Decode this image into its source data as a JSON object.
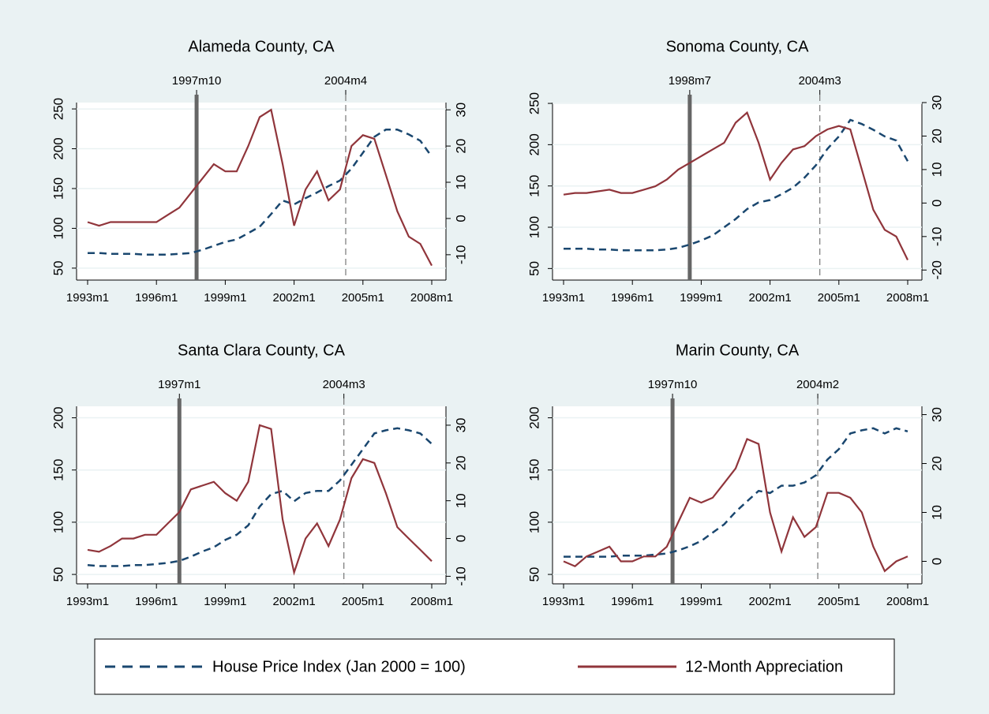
{
  "chart_data": [
    {
      "type": "line",
      "title": "Alameda County, CA",
      "x": [
        1993,
        1993.5,
        1994,
        1994.5,
        1995,
        1995.5,
        1996,
        1996.5,
        1997,
        1997.5,
        1998,
        1998.5,
        1999,
        1999.5,
        2000,
        2000.5,
        2001,
        2001.5,
        2002,
        2002.5,
        2003,
        2003.5,
        2004,
        2004.5,
        2005,
        2005.5,
        2006,
        2006.5,
        2007,
        2007.5,
        2008
      ],
      "xlim": [
        1993,
        2008
      ],
      "xticks": [
        {
          "value": 1993,
          "label": "1993m1"
        },
        {
          "value": 1996,
          "label": "1996m1"
        },
        {
          "value": 1999,
          "label": "1999m1"
        },
        {
          "value": 2002,
          "label": "2002m1"
        },
        {
          "value": 2005,
          "label": "2005m1"
        },
        {
          "value": 2008,
          "label": "2008m1"
        }
      ],
      "ylim": [
        35,
        258
      ],
      "yticks": [
        50,
        100,
        150,
        200,
        250
      ],
      "y2lim": [
        -17,
        32
      ],
      "y2ticks": [
        -10,
        0,
        10,
        20,
        30
      ],
      "vlines": [
        {
          "value": 1997.75,
          "label": "1997m10",
          "style": "solid"
        },
        {
          "value": 2004.25,
          "label": "2004m4",
          "style": "dashed"
        }
      ],
      "series": [
        {
          "axis": "y",
          "values": [
            69,
            69,
            68,
            68,
            68,
            67,
            67,
            67,
            68,
            69,
            73,
            78,
            83,
            86,
            94,
            102,
            118,
            135,
            130,
            138,
            145,
            153,
            160,
            175,
            195,
            215,
            224,
            224,
            218,
            210,
            190
          ]
        },
        {
          "axis": "y2",
          "values": [
            -1,
            -2,
            -1,
            -1,
            -1,
            -1,
            -1,
            1,
            3,
            7,
            11,
            15,
            13,
            13,
            20,
            28,
            30,
            15,
            -2,
            8,
            13,
            5,
            8,
            20,
            23,
            22,
            12,
            2,
            -5,
            -7,
            -13
          ]
        }
      ]
    },
    {
      "type": "line",
      "title": "Sonoma County, CA",
      "x": [
        1993,
        1993.5,
        1994,
        1994.5,
        1995,
        1995.5,
        1996,
        1996.5,
        1997,
        1997.5,
        1998,
        1998.5,
        1999,
        1999.5,
        2000,
        2000.5,
        2001,
        2001.5,
        2002,
        2002.5,
        2003,
        2003.5,
        2004,
        2004.5,
        2005,
        2005.5,
        2006,
        2006.5,
        2007,
        2007.5,
        2008
      ],
      "xlim": [
        1993,
        2008
      ],
      "xticks": [
        {
          "value": 1993,
          "label": "1993m1"
        },
        {
          "value": 1996,
          "label": "1996m1"
        },
        {
          "value": 1999,
          "label": "1999m1"
        },
        {
          "value": 2002,
          "label": "2002m1"
        },
        {
          "value": 2005,
          "label": "2005m1"
        },
        {
          "value": 2008,
          "label": "2008m1"
        }
      ],
      "ylim": [
        36,
        251
      ],
      "yticks": [
        50,
        100,
        150,
        200,
        250
      ],
      "y2lim": [
        -23,
        30
      ],
      "y2ticks": [
        -20,
        -10,
        0,
        10,
        20,
        30
      ],
      "vlines": [
        {
          "value": 1998.5,
          "label": "1998m7",
          "style": "solid"
        },
        {
          "value": 2004.17,
          "label": "2004m3",
          "style": "dashed"
        }
      ],
      "series": [
        {
          "axis": "y",
          "values": [
            74,
            74,
            74,
            73,
            73,
            72,
            72,
            72,
            72,
            73,
            75,
            79,
            84,
            90,
            100,
            110,
            122,
            130,
            133,
            140,
            148,
            160,
            175,
            195,
            210,
            230,
            225,
            218,
            210,
            205,
            180
          ]
        },
        {
          "axis": "y2",
          "values": [
            2.5,
            3,
            3,
            3.5,
            4,
            3,
            3,
            4,
            5,
            7,
            10,
            12,
            14,
            16,
            18,
            24,
            27,
            18,
            7,
            12,
            16,
            17,
            20,
            22,
            23,
            22,
            10,
            -2,
            -8,
            -10,
            -17
          ]
        }
      ]
    },
    {
      "type": "line",
      "title": "Santa Clara County, CA",
      "x": [
        1993,
        1993.5,
        1994,
        1994.5,
        1995,
        1995.5,
        1996,
        1996.5,
        1997,
        1997.5,
        1998,
        1998.5,
        1999,
        1999.5,
        2000,
        2000.5,
        2001,
        2001.5,
        2002,
        2002.5,
        2003,
        2003.5,
        2004,
        2004.5,
        2005,
        2005.5,
        2006,
        2006.5,
        2007,
        2007.5,
        2008
      ],
      "xlim": [
        1993,
        2008
      ],
      "xticks": [
        {
          "value": 1993,
          "label": "1993m1"
        },
        {
          "value": 1996,
          "label": "1996m1"
        },
        {
          "value": 1999,
          "label": "1999m1"
        },
        {
          "value": 2002,
          "label": "2002m1"
        },
        {
          "value": 2005,
          "label": "2005m1"
        },
        {
          "value": 2008,
          "label": "2008m1"
        }
      ],
      "ylim": [
        41,
        211
      ],
      "yticks": [
        50,
        100,
        150,
        200
      ],
      "y2lim": [
        -12,
        35
      ],
      "y2ticks": [
        -10,
        0,
        10,
        20,
        30
      ],
      "vlines": [
        {
          "value": 1997,
          "label": "1997m1",
          "style": "solid"
        },
        {
          "value": 2004.17,
          "label": "2004m3",
          "style": "dashed"
        }
      ],
      "series": [
        {
          "axis": "y",
          "values": [
            59,
            58,
            58,
            58,
            59,
            59,
            60,
            61,
            63,
            67,
            72,
            76,
            83,
            88,
            97,
            115,
            127,
            130,
            120,
            128,
            130,
            130,
            140,
            155,
            170,
            185,
            188,
            190,
            188,
            185,
            175
          ]
        },
        {
          "axis": "y2",
          "values": [
            -3,
            -3.5,
            -2,
            0,
            0,
            1,
            1,
            4,
            7,
            13,
            14,
            15,
            12,
            10,
            15,
            30,
            29,
            5,
            -9,
            0,
            4,
            -2,
            5,
            16,
            21,
            20,
            12,
            3,
            0,
            -3,
            -6
          ]
        }
      ]
    },
    {
      "type": "line",
      "title": "Marin County, CA",
      "x": [
        1993,
        1993.5,
        1994,
        1994.5,
        1995,
        1995.5,
        1996,
        1996.5,
        1997,
        1997.5,
        1998,
        1998.5,
        1999,
        1999.5,
        2000,
        2000.5,
        2001,
        2001.5,
        2002,
        2002.5,
        2003,
        2003.5,
        2004,
        2004.5,
        2005,
        2005.5,
        2006,
        2006.5,
        2007,
        2007.5,
        2008
      ],
      "xlim": [
        1993,
        2008
      ],
      "xticks": [
        {
          "value": 1993,
          "label": "1993m1"
        },
        {
          "value": 1996,
          "label": "1996m1"
        },
        {
          "value": 1999,
          "label": "1999m1"
        },
        {
          "value": 2002,
          "label": "2002m1"
        },
        {
          "value": 2005,
          "label": "2005m1"
        },
        {
          "value": 2008,
          "label": "2008m1"
        }
      ],
      "ylim": [
        41,
        211
      ],
      "yticks": [
        50,
        100,
        150,
        200
      ],
      "y2lim": [
        -4.6,
        31.7
      ],
      "y2ticks": [
        0,
        10,
        20,
        30
      ],
      "vlines": [
        {
          "value": 1997.75,
          "label": "1997m10",
          "style": "solid"
        },
        {
          "value": 2004.08,
          "label": "2004m2",
          "style": "dashed"
        }
      ],
      "series": [
        {
          "axis": "y",
          "values": [
            67,
            67,
            67,
            67,
            67,
            68,
            68,
            68,
            69,
            70,
            73,
            77,
            82,
            90,
            98,
            110,
            120,
            130,
            128,
            135,
            135,
            138,
            145,
            160,
            170,
            185,
            188,
            190,
            185,
            190,
            187
          ]
        },
        {
          "axis": "y2",
          "values": [
            0,
            -1,
            1,
            2,
            3,
            0,
            0,
            1,
            1,
            3,
            8,
            13,
            12,
            13,
            16,
            19,
            25,
            24,
            10,
            2,
            9,
            5,
            7,
            14,
            14,
            13,
            10,
            3,
            -2,
            0,
            1
          ]
        }
      ]
    }
  ],
  "legend": [
    {
      "name": "House Price Index (Jan 2000 = 100)",
      "color": "#1a476f",
      "dash": true
    },
    {
      "name": "12-Month Appreciation",
      "color": "#90353b",
      "dash": false
    }
  ]
}
